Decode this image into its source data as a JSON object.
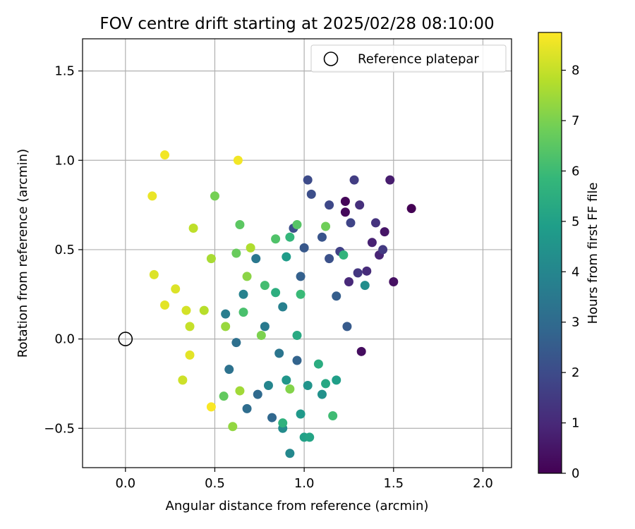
{
  "chart_data": {
    "type": "scatter",
    "title": "FOV centre drift starting at 2025/02/28 08:10:00",
    "xlabel": "Angular distance from reference (arcmin)",
    "ylabel": "Rotation from reference (arcmin)",
    "xlim": [
      -0.24,
      2.16
    ],
    "ylim": [
      -0.72,
      1.68
    ],
    "xticks": [
      0.0,
      0.5,
      1.0,
      1.5,
      2.0
    ],
    "xtick_labels": [
      "0.0",
      "0.5",
      "1.0",
      "1.5",
      "2.0"
    ],
    "yticks": [
      -0.5,
      0.0,
      0.5,
      1.0,
      1.5
    ],
    "ytick_labels": [
      "−0.5",
      "0.0",
      "0.5",
      "1.0",
      "1.5"
    ],
    "grid": true,
    "legend": {
      "placement": "top-right",
      "entries": [
        "Reference platepar"
      ]
    },
    "reference_point": {
      "x": 0.0,
      "y": 0.0,
      "marker": "open-circle",
      "label": "Reference platepar"
    },
    "colorbar": {
      "label": "Hours from first FF file",
      "colormap": "viridis",
      "range": [
        0,
        8.75
      ],
      "ticks": [
        0,
        1,
        2,
        3,
        4,
        5,
        6,
        7,
        8
      ],
      "tick_labels": [
        "0",
        "1",
        "2",
        "3",
        "4",
        "5",
        "6",
        "7",
        "8"
      ]
    },
    "points": [
      {
        "x": 1.6,
        "y": 0.73,
        "hours": 0.0
      },
      {
        "x": 1.23,
        "y": 0.77,
        "hours": 0.1
      },
      {
        "x": 1.23,
        "y": 0.71,
        "hours": 0.2
      },
      {
        "x": 1.32,
        "y": -0.07,
        "hours": 0.3
      },
      {
        "x": 1.5,
        "y": 0.32,
        "hours": 0.4
      },
      {
        "x": 1.45,
        "y": 0.6,
        "hours": 0.5
      },
      {
        "x": 1.48,
        "y": 0.89,
        "hours": 0.7
      },
      {
        "x": 1.38,
        "y": 0.54,
        "hours": 0.8
      },
      {
        "x": 1.42,
        "y": 0.47,
        "hours": 0.9
      },
      {
        "x": 1.25,
        "y": 0.32,
        "hours": 1.0
      },
      {
        "x": 1.35,
        "y": 0.38,
        "hours": 1.1
      },
      {
        "x": 1.31,
        "y": 0.75,
        "hours": 1.2
      },
      {
        "x": 1.4,
        "y": 0.65,
        "hours": 1.3
      },
      {
        "x": 1.28,
        "y": 0.89,
        "hours": 1.6
      },
      {
        "x": 1.44,
        "y": 0.5,
        "hours": 1.5
      },
      {
        "x": 1.3,
        "y": 0.37,
        "hours": 1.4
      },
      {
        "x": 1.2,
        "y": 0.49,
        "hours": 1.7
      },
      {
        "x": 1.26,
        "y": 0.65,
        "hours": 1.8
      },
      {
        "x": 1.14,
        "y": 0.75,
        "hours": 1.9
      },
      {
        "x": 1.02,
        "y": 0.89,
        "hours": 2.0
      },
      {
        "x": 1.04,
        "y": 0.81,
        "hours": 2.1
      },
      {
        "x": 1.14,
        "y": 0.45,
        "hours": 2.2
      },
      {
        "x": 1.1,
        "y": 0.57,
        "hours": 2.3
      },
      {
        "x": 1.0,
        "y": 0.51,
        "hours": 2.4
      },
      {
        "x": 1.24,
        "y": 0.07,
        "hours": 2.5
      },
      {
        "x": 1.18,
        "y": 0.24,
        "hours": 2.6
      },
      {
        "x": 0.94,
        "y": 0.62,
        "hours": 2.1
      },
      {
        "x": 0.98,
        "y": 0.35,
        "hours": 2.7
      },
      {
        "x": 0.96,
        "y": -0.12,
        "hours": 2.8
      },
      {
        "x": 0.82,
        "y": -0.44,
        "hours": 2.9
      },
      {
        "x": 0.74,
        "y": -0.31,
        "hours": 3.0
      },
      {
        "x": 0.68,
        "y": -0.39,
        "hours": 3.1
      },
      {
        "x": 0.62,
        "y": -0.02,
        "hours": 3.2
      },
      {
        "x": 0.58,
        "y": -0.17,
        "hours": 3.3
      },
      {
        "x": 0.86,
        "y": -0.08,
        "hours": 3.4
      },
      {
        "x": 0.73,
        "y": 0.45,
        "hours": 3.5
      },
      {
        "x": 0.78,
        "y": 0.07,
        "hours": 3.6
      },
      {
        "x": 0.56,
        "y": 0.14,
        "hours": 3.7
      },
      {
        "x": 0.88,
        "y": 0.18,
        "hours": 3.8
      },
      {
        "x": 0.66,
        "y": 0.25,
        "hours": 3.9
      },
      {
        "x": 0.8,
        "y": -0.26,
        "hours": 4.0
      },
      {
        "x": 0.92,
        "y": -0.64,
        "hours": 4.1
      },
      {
        "x": 0.88,
        "y": -0.5,
        "hours": 4.2
      },
      {
        "x": 1.34,
        "y": 0.3,
        "hours": 4.3
      },
      {
        "x": 1.1,
        "y": -0.31,
        "hours": 4.4
      },
      {
        "x": 1.02,
        "y": -0.26,
        "hours": 4.5
      },
      {
        "x": 0.9,
        "y": -0.23,
        "hours": 4.6
      },
      {
        "x": 0.98,
        "y": -0.42,
        "hours": 4.7
      },
      {
        "x": 0.9,
        "y": 0.46,
        "hours": 4.8
      },
      {
        "x": 1.18,
        "y": -0.23,
        "hours": 4.9
      },
      {
        "x": 1.0,
        "y": -0.55,
        "hours": 5.0
      },
      {
        "x": 1.03,
        "y": -0.55,
        "hours": 5.1
      },
      {
        "x": 1.12,
        "y": -0.25,
        "hours": 5.2
      },
      {
        "x": 0.96,
        "y": 0.02,
        "hours": 5.3
      },
      {
        "x": 1.08,
        "y": -0.14,
        "hours": 5.4
      },
      {
        "x": 0.84,
        "y": 0.26,
        "hours": 5.5
      },
      {
        "x": 0.88,
        "y": -0.47,
        "hours": 5.6
      },
      {
        "x": 1.22,
        "y": 0.47,
        "hours": 5.7
      },
      {
        "x": 0.92,
        "y": 0.57,
        "hours": 5.8
      },
      {
        "x": 0.98,
        "y": 0.25,
        "hours": 5.9
      },
      {
        "x": 1.16,
        "y": -0.43,
        "hours": 6.0
      },
      {
        "x": 0.78,
        "y": 0.3,
        "hours": 6.1
      },
      {
        "x": 0.66,
        "y": 0.15,
        "hours": 6.2
      },
      {
        "x": 0.84,
        "y": 0.56,
        "hours": 6.3
      },
      {
        "x": 0.96,
        "y": 0.64,
        "hours": 6.4
      },
      {
        "x": 0.64,
        "y": 0.64,
        "hours": 6.5
      },
      {
        "x": 0.55,
        "y": -0.32,
        "hours": 6.6
      },
      {
        "x": 0.62,
        "y": 0.48,
        "hours": 6.7
      },
      {
        "x": 1.12,
        "y": 0.63,
        "hours": 6.8
      },
      {
        "x": 0.5,
        "y": 0.8,
        "hours": 6.9
      },
      {
        "x": 0.76,
        "y": 0.02,
        "hours": 7.0
      },
      {
        "x": 0.92,
        "y": -0.28,
        "hours": 7.1
      },
      {
        "x": 0.68,
        "y": 0.35,
        "hours": 7.2
      },
      {
        "x": 0.6,
        "y": -0.49,
        "hours": 7.3
      },
      {
        "x": 0.56,
        "y": 0.07,
        "hours": 7.4
      },
      {
        "x": 0.64,
        "y": -0.29,
        "hours": 7.5
      },
      {
        "x": 0.48,
        "y": 0.45,
        "hours": 7.6
      },
      {
        "x": 0.7,
        "y": 0.51,
        "hours": 7.7
      },
      {
        "x": 0.44,
        "y": 0.16,
        "hours": 7.8
      },
      {
        "x": 0.38,
        "y": 0.62,
        "hours": 7.9
      },
      {
        "x": 0.36,
        "y": 0.07,
        "hours": 8.0
      },
      {
        "x": 0.32,
        "y": -0.23,
        "hours": 8.1
      },
      {
        "x": 0.34,
        "y": 0.16,
        "hours": 8.2
      },
      {
        "x": 0.28,
        "y": 0.28,
        "hours": 8.3
      },
      {
        "x": 0.36,
        "y": -0.09,
        "hours": 8.4
      },
      {
        "x": 0.15,
        "y": 0.8,
        "hours": 8.5
      },
      {
        "x": 0.22,
        "y": 1.03,
        "hours": 8.6
      },
      {
        "x": 0.48,
        "y": -0.38,
        "hours": 8.7
      },
      {
        "x": 0.63,
        "y": 1.0,
        "hours": 8.6
      },
      {
        "x": 0.22,
        "y": 0.19,
        "hours": 8.4
      },
      {
        "x": 0.16,
        "y": 0.36,
        "hours": 8.3
      }
    ]
  }
}
